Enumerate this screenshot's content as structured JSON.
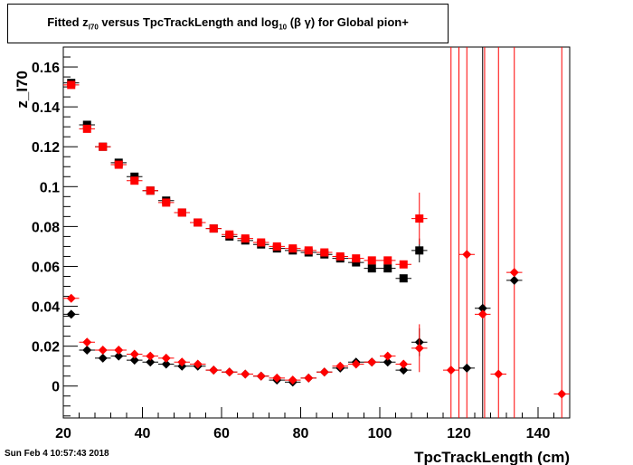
{
  "header": {
    "title_pre": "Fitted  z",
    "title_sub1": "I70",
    "title_mid": "  versus TpcTrackLength and log",
    "title_sub2": "10",
    "title_post": " (β γ) for Global pion+"
  },
  "footer": {
    "date": "Sun Feb  4 10:57:43 2018"
  },
  "chart_data": {
    "type": "scatter",
    "title": "Fitted z_I70 versus TpcTrackLength and log10 (β γ) for Global pion+",
    "xlabel": "TpcTrackLength (cm)",
    "ylabel": "z_I70",
    "xlim": [
      20,
      148
    ],
    "ylim": [
      -0.016,
      0.17
    ],
    "xticks": [
      20,
      40,
      60,
      80,
      100,
      120,
      140
    ],
    "yticks": [
      0,
      0.02,
      0.04,
      0.06,
      0.08,
      0.1,
      0.12,
      0.14,
      0.16
    ],
    "ytick_labels": [
      "0",
      "0.02",
      "0.04",
      "0.06",
      "0.08",
      "0.1",
      "0.12",
      "0.14",
      "0.16"
    ],
    "grid": false,
    "legend": "none",
    "colors": {
      "black": "#000000",
      "red": "#ff0000"
    },
    "series": [
      {
        "marker": "square",
        "color": "#000000",
        "points": [
          {
            "x": 22,
            "y": 0.152
          },
          {
            "x": 26,
            "y": 0.131
          },
          {
            "x": 30,
            "y": 0.12
          },
          {
            "x": 34,
            "y": 0.112
          },
          {
            "x": 38,
            "y": 0.105
          },
          {
            "x": 42,
            "y": 0.098
          },
          {
            "x": 46,
            "y": 0.093
          },
          {
            "x": 50,
            "y": 0.087
          },
          {
            "x": 54,
            "y": 0.082
          },
          {
            "x": 58,
            "y": 0.079
          },
          {
            "x": 62,
            "y": 0.075
          },
          {
            "x": 66,
            "y": 0.073
          },
          {
            "x": 70,
            "y": 0.071
          },
          {
            "x": 74,
            "y": 0.069
          },
          {
            "x": 78,
            "y": 0.068
          },
          {
            "x": 82,
            "y": 0.067
          },
          {
            "x": 86,
            "y": 0.066
          },
          {
            "x": 90,
            "y": 0.064
          },
          {
            "x": 94,
            "y": 0.062
          },
          {
            "x": 98,
            "y": 0.059
          },
          {
            "x": 102,
            "y": 0.059
          },
          {
            "x": 106,
            "y": 0.054
          },
          {
            "x": 110,
            "y": 0.068,
            "err": 0.006
          }
        ]
      },
      {
        "marker": "square",
        "color": "#ff0000",
        "points": [
          {
            "x": 22,
            "y": 0.151
          },
          {
            "x": 26,
            "y": 0.129
          },
          {
            "x": 30,
            "y": 0.12
          },
          {
            "x": 34,
            "y": 0.111
          },
          {
            "x": 38,
            "y": 0.103
          },
          {
            "x": 42,
            "y": 0.098
          },
          {
            "x": 46,
            "y": 0.092
          },
          {
            "x": 50,
            "y": 0.087
          },
          {
            "x": 54,
            "y": 0.082
          },
          {
            "x": 58,
            "y": 0.079
          },
          {
            "x": 62,
            "y": 0.076
          },
          {
            "x": 66,
            "y": 0.074
          },
          {
            "x": 70,
            "y": 0.072
          },
          {
            "x": 74,
            "y": 0.07
          },
          {
            "x": 78,
            "y": 0.069
          },
          {
            "x": 82,
            "y": 0.068
          },
          {
            "x": 86,
            "y": 0.067
          },
          {
            "x": 90,
            "y": 0.065
          },
          {
            "x": 94,
            "y": 0.064
          },
          {
            "x": 98,
            "y": 0.063
          },
          {
            "x": 102,
            "y": 0.063
          },
          {
            "x": 106,
            "y": 0.061
          },
          {
            "x": 110,
            "y": 0.084,
            "err": 0.013
          }
        ]
      },
      {
        "marker": "diamond",
        "color": "#000000",
        "points": [
          {
            "x": 22,
            "y": 0.036
          },
          {
            "x": 26,
            "y": 0.018
          },
          {
            "x": 30,
            "y": 0.014
          },
          {
            "x": 34,
            "y": 0.015
          },
          {
            "x": 38,
            "y": 0.013
          },
          {
            "x": 42,
            "y": 0.012
          },
          {
            "x": 46,
            "y": 0.011
          },
          {
            "x": 50,
            "y": 0.01
          },
          {
            "x": 54,
            "y": 0.01
          },
          {
            "x": 58,
            "y": 0.008
          },
          {
            "x": 62,
            "y": 0.007
          },
          {
            "x": 66,
            "y": 0.006
          },
          {
            "x": 70,
            "y": 0.005
          },
          {
            "x": 74,
            "y": 0.003
          },
          {
            "x": 78,
            "y": 0.002
          },
          {
            "x": 82,
            "y": 0.004
          },
          {
            "x": 86,
            "y": 0.007
          },
          {
            "x": 90,
            "y": 0.009
          },
          {
            "x": 94,
            "y": 0.012
          },
          {
            "x": 98,
            "y": 0.012
          },
          {
            "x": 102,
            "y": 0.012
          },
          {
            "x": 106,
            "y": 0.008
          },
          {
            "x": 110,
            "y": 0.022,
            "err": 0.007
          },
          {
            "x": 122,
            "y": 0.009
          },
          {
            "x": 126,
            "y": 0.039
          },
          {
            "x": 134,
            "y": 0.053
          }
        ]
      },
      {
        "marker": "diamond",
        "color": "#ff0000",
        "points": [
          {
            "x": 22,
            "y": 0.044
          },
          {
            "x": 26,
            "y": 0.022
          },
          {
            "x": 30,
            "y": 0.018
          },
          {
            "x": 34,
            "y": 0.018
          },
          {
            "x": 38,
            "y": 0.016
          },
          {
            "x": 42,
            "y": 0.015
          },
          {
            "x": 46,
            "y": 0.014
          },
          {
            "x": 50,
            "y": 0.012
          },
          {
            "x": 54,
            "y": 0.011
          },
          {
            "x": 58,
            "y": 0.008
          },
          {
            "x": 62,
            "y": 0.007
          },
          {
            "x": 66,
            "y": 0.006
          },
          {
            "x": 70,
            "y": 0.005
          },
          {
            "x": 74,
            "y": 0.004
          },
          {
            "x": 78,
            "y": 0.003
          },
          {
            "x": 82,
            "y": 0.004
          },
          {
            "x": 86,
            "y": 0.007
          },
          {
            "x": 90,
            "y": 0.01
          },
          {
            "x": 94,
            "y": 0.011
          },
          {
            "x": 98,
            "y": 0.012
          },
          {
            "x": 102,
            "y": 0.015
          },
          {
            "x": 106,
            "y": 0.011
          },
          {
            "x": 110,
            "y": 0.019,
            "err": 0.012
          },
          {
            "x": 118,
            "y": 0.008
          },
          {
            "x": 122,
            "y": 0.066
          },
          {
            "x": 126,
            "y": 0.036
          },
          {
            "x": 130,
            "y": 0.006
          },
          {
            "x": 134,
            "y": 0.057
          },
          {
            "x": 146,
            "y": -0.004
          }
        ]
      }
    ],
    "vertical_error_lines": [
      {
        "x": 118,
        "color": "#ff0000"
      },
      {
        "x": 120,
        "color": "#ff0000"
      },
      {
        "x": 122,
        "color": "#ff0000"
      },
      {
        "x": 126,
        "color": "#000000"
      },
      {
        "x": 126.5,
        "color": "#ff0000"
      },
      {
        "x": 130,
        "color": "#ff0000"
      },
      {
        "x": 134,
        "color": "#ff0000"
      },
      {
        "x": 146,
        "color": "#ff0000"
      }
    ]
  }
}
